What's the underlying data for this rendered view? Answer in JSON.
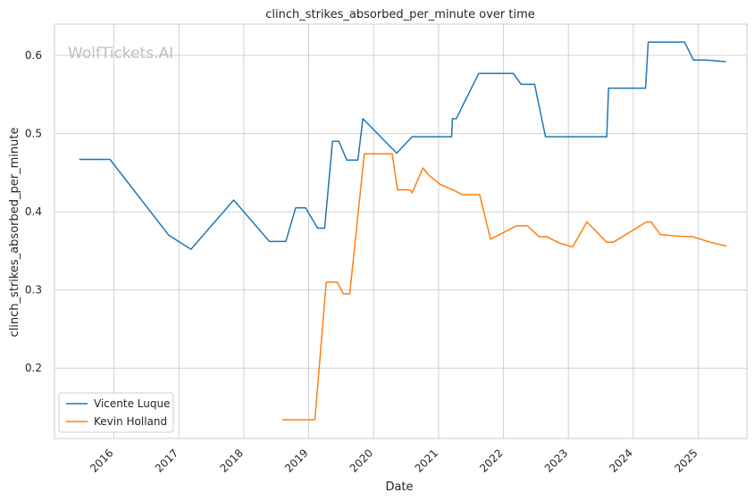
{
  "chart_data": {
    "type": "line",
    "title": "clinch_strikes_absorbed_per_minute over time",
    "xlabel": "Date",
    "ylabel": "clinch_strikes_absorbed_per_minute",
    "watermark": "WolfTickets.AI",
    "grid": true,
    "legend_position": "bottom-left",
    "xlim": [
      "2015-02-01",
      "2025-10-01"
    ],
    "ylim": [
      0.11,
      0.64
    ],
    "x_ticks": [
      "2016",
      "2017",
      "2018",
      "2019",
      "2020",
      "2021",
      "2022",
      "2023",
      "2024",
      "2025"
    ],
    "y_ticks": [
      0.2,
      0.3,
      0.4,
      0.5,
      0.6
    ],
    "series": [
      {
        "name": "Vicente Luque",
        "color": "#1f77b4",
        "x": [
          "2015-06-20",
          "2015-12-10",
          "2016-11-05",
          "2017-03-10",
          "2017-11-05",
          "2018-05-25",
          "2018-08-25",
          "2018-10-20",
          "2018-12-15",
          "2019-02-20",
          "2019-04-01",
          "2019-05-15",
          "2019-06-20",
          "2019-08-03",
          "2019-10-05",
          "2019-11-02",
          "2020-05-10",
          "2020-08-05",
          "2021-03-15",
          "2021-03-20",
          "2021-04-10",
          "2021-08-15",
          "2022-02-25",
          "2022-04-10",
          "2022-06-25",
          "2022-08-25",
          "2023-04-01",
          "2023-08-05",
          "2023-08-15",
          "2024-03-10",
          "2024-03-25",
          "2024-10-15",
          "2024-12-05",
          "2025-02-15",
          "2025-06-05"
        ],
        "values": [
          0.467,
          0.467,
          0.37,
          0.352,
          0.415,
          0.362,
          0.362,
          0.405,
          0.405,
          0.379,
          0.379,
          0.49,
          0.49,
          0.466,
          0.466,
          0.519,
          0.475,
          0.496,
          0.496,
          0.519,
          0.519,
          0.577,
          0.577,
          0.563,
          0.563,
          0.496,
          0.496,
          0.496,
          0.558,
          0.558,
          0.617,
          0.617,
          0.594,
          0.594,
          0.592
        ]
      },
      {
        "name": "Kevin Holland",
        "color": "#ff7f0e",
        "x": [
          "2018-08-05",
          "2019-02-05",
          "2019-04-10",
          "2019-06-10",
          "2019-07-15",
          "2019-08-20",
          "2019-11-10",
          "2020-04-15",
          "2020-05-15",
          "2020-07-25",
          "2020-08-05",
          "2020-10-05",
          "2020-11-10",
          "2021-01-10",
          "2021-04-01",
          "2021-05-15",
          "2021-08-20",
          "2021-10-20",
          "2022-03-15",
          "2022-05-15",
          "2022-07-20",
          "2022-09-01",
          "2022-11-10",
          "2023-01-25",
          "2023-04-15",
          "2023-08-05",
          "2023-09-10",
          "2024-03-15",
          "2024-04-10",
          "2024-06-01",
          "2024-08-25",
          "2024-12-01",
          "2025-03-10",
          "2025-06-10"
        ],
        "values": [
          0.134,
          0.134,
          0.31,
          0.31,
          0.295,
          0.295,
          0.474,
          0.474,
          0.428,
          0.428,
          0.424,
          0.456,
          0.446,
          0.435,
          0.427,
          0.422,
          0.422,
          0.365,
          0.382,
          0.382,
          0.368,
          0.368,
          0.36,
          0.355,
          0.387,
          0.361,
          0.361,
          0.387,
          0.387,
          0.371,
          0.369,
          0.368,
          0.361,
          0.356
        ]
      }
    ]
  }
}
